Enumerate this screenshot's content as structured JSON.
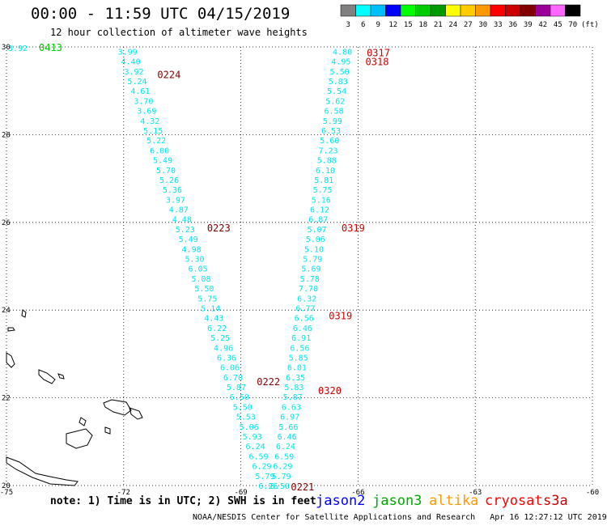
{
  "title": "00:00 - 11:59 UTC 04/15/2019",
  "subtitle": "12 hour collection of altimeter wave heights",
  "colorbar": {
    "unit": "(ft)",
    "labels": [
      "3",
      "6",
      "9",
      "12",
      "15",
      "18",
      "21",
      "24",
      "27",
      "30",
      "33",
      "36",
      "39",
      "42",
      "45",
      "70"
    ],
    "colors": [
      "#808080",
      "#00ffff",
      "#00bfff",
      "#0000ff",
      "#00ff00",
      "#00cc00",
      "#009900",
      "#ffff00",
      "#ffcc00",
      "#ff9900",
      "#ff0000",
      "#cc0000",
      "#800000",
      "#990099",
      "#ff66ff",
      "#000000"
    ]
  },
  "axes": {
    "lon_ticks": [
      "-75",
      "-72",
      "-69",
      "-66",
      "-63",
      "-60"
    ],
    "lat_ticks": [
      "30",
      "28",
      "26",
      "24",
      "22",
      "20"
    ],
    "lon_range": [
      -75,
      -60
    ],
    "lat_range": [
      20,
      30
    ],
    "grid": "dotted"
  },
  "tracks": [
    {
      "name": "left-pass",
      "color": "#00e5ee",
      "label_color": "#800000",
      "start_lon": -71.9,
      "start_lat": 29.9,
      "end_lon": -68.3,
      "end_lat": 20.0,
      "values": [
        "3.99",
        "4.40",
        "3.92",
        "5.24",
        "4.61",
        "3.70",
        "3.69",
        "4.32",
        "5.15",
        "5.22",
        "6.00",
        "5.49",
        "5.70",
        "5.26",
        "5.36",
        "3.97",
        "4.87",
        "4.48",
        "5.23",
        "5.49",
        "4.98",
        "5.30",
        "6.05",
        "5.08",
        "5.50",
        "5.75",
        "5.14",
        "4.43",
        "6.22",
        "5.25",
        "4.96",
        "6.36",
        "6.06",
        "6.70",
        "5.87",
        "6.50",
        "5.50",
        "5.53",
        "5.06",
        "5.93",
        "6.24",
        "6.59",
        "6.29",
        "5.79",
        "6.26"
      ],
      "time_labels": [
        {
          "text": "0224",
          "lat": 29.4
        },
        {
          "text": "0223",
          "lat": 25.9
        },
        {
          "text": "0222",
          "lat": 22.4
        },
        {
          "text": "0221",
          "lat": 20.0
        }
      ]
    },
    {
      "name": "right-pass",
      "color": "#00e5ee",
      "label_color": "#cc0000",
      "start_lon": -66.4,
      "start_lat": 29.9,
      "end_lon": -68.0,
      "end_lat": 20.0,
      "values": [
        "4.80",
        "4.95",
        "5.50",
        "5.83",
        "5.54",
        "5.62",
        "6.58",
        "5.99",
        "6.53",
        "5.60",
        "7.23",
        "5.88",
        "6.10",
        "5.81",
        "5.75",
        "5.16",
        "6.12",
        "6.87",
        "5.07",
        "5.06",
        "5.10",
        "5.79",
        "5.69",
        "5.78",
        "7.70",
        "6.32",
        "6.77",
        "6.56",
        "6.46",
        "6.91",
        "6.56",
        "5.85",
        "6.01",
        "6.35",
        "5.83",
        "5.87",
        "6.63",
        "6.97",
        "5.66",
        "6.46",
        "6.24",
        "6.59",
        "6.29",
        "5.79",
        "6.50"
      ],
      "time_labels": [
        {
          "text": "0317",
          "lat": 29.9
        },
        {
          "text": "0318",
          "lat": 29.7
        },
        {
          "text": "0319",
          "lat": 25.9
        },
        {
          "text": "0319",
          "lat": 23.9
        },
        {
          "text": "0320",
          "lat": 22.2
        }
      ]
    }
  ],
  "edge_track": {
    "value": "3.92",
    "time_label": "0413",
    "color": "#00cc00"
  },
  "footer": {
    "note": "note: 1) Time is in UTC; 2) SWH is in feet",
    "satellites": [
      {
        "name": "jason2",
        "color": "#0000ff"
      },
      {
        "name": "jason3",
        "color": "#00aa00"
      },
      {
        "name": "altika",
        "color": "#ff9900"
      },
      {
        "name": "cryosat",
        "color": "#ff0000"
      },
      {
        "name": "s3a",
        "color": "#cc0000"
      }
    ],
    "credit": "NOAA/NESDIS Center for Satellite Applications and Research",
    "timestamp": "Apr 16 12:27:12 UTC 2019"
  }
}
